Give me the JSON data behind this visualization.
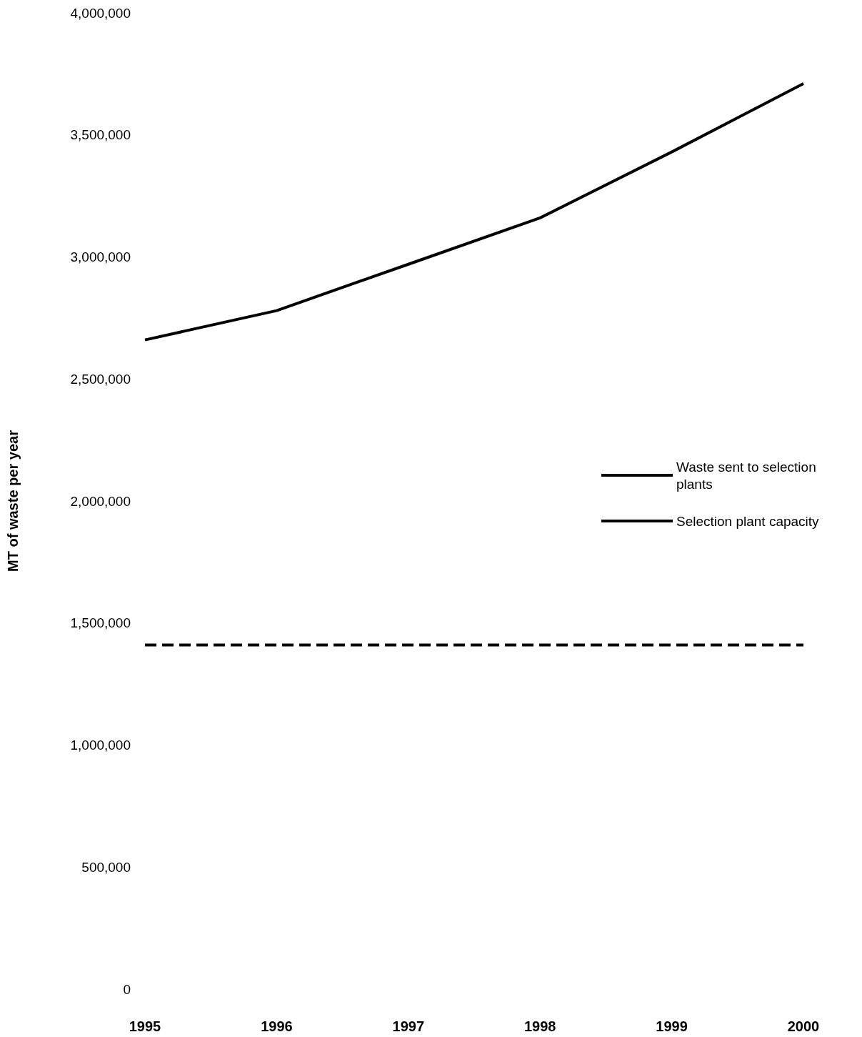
{
  "chart_data": {
    "type": "line",
    "ylabel": "MT of waste per year",
    "categories": [
      "1995",
      "1996",
      "1997",
      "1998",
      "1999",
      "2000"
    ],
    "series": [
      {
        "name": "Waste sent to selection plants",
        "color": "#000000",
        "line_style": "solid",
        "values": [
          2660000,
          2780000,
          2970000,
          3160000,
          3430000,
          3710000
        ]
      },
      {
        "name": "Selection plant capacity",
        "color": "#000000",
        "line_style": "dashed",
        "values": [
          1410000,
          1410000,
          1410000,
          1410000,
          1410000,
          1410000
        ]
      }
    ],
    "ylim": [
      0,
      4000000
    ],
    "yticks": [
      0,
      {
        "value": 500000,
        "label": "500,000"
      },
      {
        "value": 1000000,
        "label": "1,000,000"
      },
      {
        "value": 1500000,
        "label": "1,500,000"
      },
      {
        "value": 2000000,
        "label": "2,000,000"
      },
      {
        "value": 2500000,
        "label": "2,500,000"
      },
      {
        "value": 3000000,
        "label": "3,000,000"
      },
      {
        "value": 3500000,
        "label": "3,500,000"
      },
      {
        "value": 4000000,
        "label": "4,000,000"
      }
    ],
    "grid": false,
    "legend": "right",
    "marker": "none"
  }
}
